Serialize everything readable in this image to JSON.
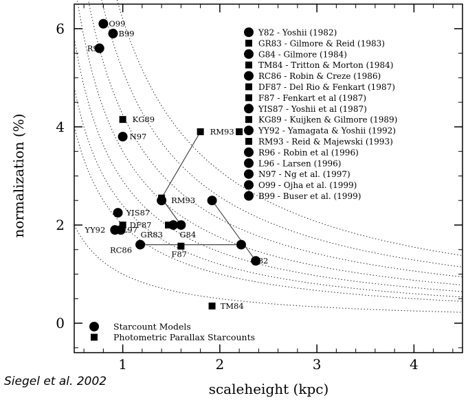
{
  "chart_data": {
    "type": "scatter",
    "xlabel": "scaleheight (kpc)",
    "ylabel": "normalization (%)",
    "xlim": [
      0.5,
      4.5
    ],
    "ylim": [
      -0.6,
      6.5
    ],
    "xticks": [
      "1",
      "2",
      "3",
      "4"
    ],
    "xtick_values": [
      1,
      2,
      3,
      4
    ],
    "yticks": [
      "0",
      "2",
      "4",
      "6"
    ],
    "ytick_values": [
      0,
      2,
      4,
      6
    ],
    "curves_note": "dotted reference curves",
    "legend_markers": [
      {
        "label": "Starcount Models",
        "marker": "circle"
      },
      {
        "label": "Photometric Parallax Starcounts",
        "marker": "square"
      }
    ],
    "key_entries": [
      {
        "label": "Y82 - Yoshii (1982)",
        "marker": "circle"
      },
      {
        "label": "GR83 - Gilmore & Reid (1983)",
        "marker": "square"
      },
      {
        "label": "G84 - Gilmore (1984)",
        "marker": "circle"
      },
      {
        "label": "TM84 - Tritton & Morton (1984)",
        "marker": "square"
      },
      {
        "label": "RC86 - Robin & Creze (1986)",
        "marker": "circle"
      },
      {
        "label": "DF87 - Del Rio & Fenkart (1987)",
        "marker": "square"
      },
      {
        "label": "F87 - Fenkart et al (1987)",
        "marker": "square"
      },
      {
        "label": "YIS87 - Yoshii et al (1987)",
        "marker": "circle"
      },
      {
        "label": "KG89 - Kuijken & Gilmore (1989)",
        "marker": "square"
      },
      {
        "label": "YY92 - Yamagata & Yoshii (1992)",
        "marker": "circle"
      },
      {
        "label": "RM93 - Reid & Majewski (1993)",
        "marker": "square"
      },
      {
        "label": "R96 - Robin et al (1996)",
        "marker": "circle"
      },
      {
        "label": "L96 - Larsen (1996)",
        "marker": "circle"
      },
      {
        "label": "N97 - Ng et al. (1997)",
        "marker": "circle"
      },
      {
        "label": "O99 - Ojha et al. (1999)",
        "marker": "circle"
      },
      {
        "label": "B99 - Buser et al. (1999)",
        "marker": "circle"
      }
    ],
    "points": [
      {
        "label": "O99",
        "x": 0.8,
        "y": 6.1,
        "marker": "circle"
      },
      {
        "label": "B99",
        "x": 0.9,
        "y": 5.9,
        "marker": "circle"
      },
      {
        "label": "R96",
        "x": 0.76,
        "y": 5.6,
        "marker": "circle"
      },
      {
        "label": "KG89",
        "x": 1.0,
        "y": 4.15,
        "marker": "square"
      },
      {
        "label": "N97",
        "x": 1.0,
        "y": 3.8,
        "marker": "circle"
      },
      {
        "label": "RM93",
        "x": 1.8,
        "y": 3.9,
        "marker": "square"
      },
      {
        "label": "",
        "x": 2.2,
        "y": 3.9,
        "marker": "square"
      },
      {
        "label": "",
        "x": 1.4,
        "y": 2.55,
        "marker": "square"
      },
      {
        "label": "RM93",
        "x": 1.4,
        "y": 2.5,
        "marker": "circle"
      },
      {
        "label": "",
        "x": 1.92,
        "y": 2.5,
        "marker": "circle"
      },
      {
        "label": "YIS87",
        "x": 0.95,
        "y": 2.25,
        "marker": "circle"
      },
      {
        "label": "DF87",
        "x": 1.0,
        "y": 2.0,
        "marker": "square"
      },
      {
        "label": "YY92",
        "x": 0.92,
        "y": 1.9,
        "marker": "circle"
      },
      {
        "label": "L97",
        "x": 0.98,
        "y": 1.9,
        "marker": "circle"
      },
      {
        "label": "GR83",
        "x": 1.47,
        "y": 2.0,
        "marker": "square"
      },
      {
        "label": "",
        "x": 1.52,
        "y": 2.0,
        "marker": "circle"
      },
      {
        "label": "G84",
        "x": 1.6,
        "y": 2.0,
        "marker": "circle"
      },
      {
        "label": "RC86",
        "x": 1.18,
        "y": 1.6,
        "marker": "circle"
      },
      {
        "label": "F87",
        "x": 1.6,
        "y": 1.57,
        "marker": "square"
      },
      {
        "label": "",
        "x": 2.22,
        "y": 1.6,
        "marker": "circle"
      },
      {
        "label": "Y82",
        "x": 2.37,
        "y": 1.27,
        "marker": "circle"
      },
      {
        "label": "TM84",
        "x": 1.92,
        "y": 0.35,
        "marker": "square"
      }
    ],
    "connections": [
      {
        "x": [
          1.8,
          1.4
        ],
        "y": [
          3.9,
          2.55
        ]
      },
      {
        "x": [
          1.4,
          1.6
        ],
        "y": [
          2.55,
          2.0
        ]
      },
      {
        "x": [
          1.18,
          2.22
        ],
        "y": [
          1.6,
          1.6
        ]
      },
      {
        "x": [
          1.92,
          2.37
        ],
        "y": [
          2.5,
          1.27
        ]
      }
    ]
  },
  "credit": "Siegel et al. 2002"
}
